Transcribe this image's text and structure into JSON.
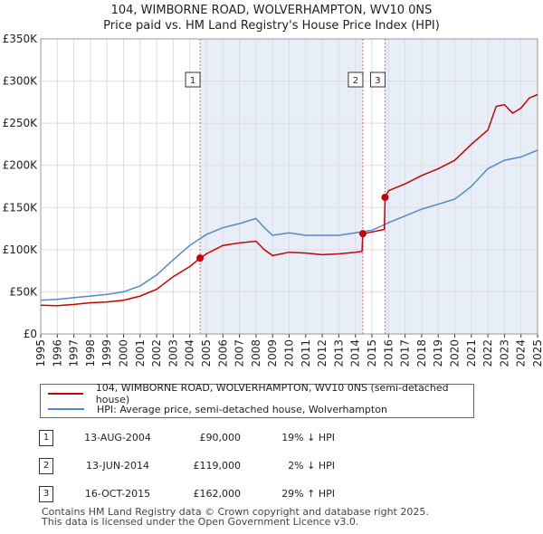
{
  "page": {
    "title_line1": "104, WIMBORNE ROAD, WOLVERHAMPTON, WV10 0NS",
    "title_line2": "Price paid vs. HM Land Registry's House Price Index (HPI)"
  },
  "legend": {
    "property_label": "104, WIMBORNE ROAD, WOLVERHAMPTON, WV10 0NS (semi-detached house)",
    "hpi_label": "HPI: Average price, semi-detached house, Wolverhampton"
  },
  "sales": [
    {
      "num": "1",
      "date": "13-AUG-2004",
      "price": "£90,000",
      "hpi_change": "19% ↓ HPI"
    },
    {
      "num": "2",
      "date": "13-JUN-2014",
      "price": "£119,000",
      "hpi_change": "2% ↓ HPI"
    },
    {
      "num": "3",
      "date": "16-OCT-2015",
      "price": "£162,000",
      "hpi_change": "29% ↑ HPI"
    }
  ],
  "footer": {
    "line1": "Contains HM Land Registry data © Crown copyright and database right 2025.",
    "line2": "This data is licensed under the Open Government Licence v3.0."
  },
  "chart_data": {
    "type": "line",
    "title": "104, WIMBORNE ROAD, WOLVERHAMPTON, WV10 0NS — Price paid vs. HM Land Registry's House Price Index (HPI)",
    "xlabel": "",
    "ylabel": "",
    "xlim": [
      1995,
      2025
    ],
    "ylim": [
      0,
      350000
    ],
    "x_ticks": [
      1995,
      1996,
      1997,
      1998,
      1999,
      2000,
      2001,
      2002,
      2003,
      2004,
      2005,
      2006,
      2007,
      2008,
      2009,
      2010,
      2011,
      2012,
      2013,
      2014,
      2015,
      2016,
      2017,
      2018,
      2019,
      2020,
      2021,
      2022,
      2023,
      2024,
      2025
    ],
    "y_ticks": [
      {
        "value": 0,
        "label": "£0"
      },
      {
        "value": 50000,
        "label": "£50K"
      },
      {
        "value": 100000,
        "label": "£100K"
      },
      {
        "value": 150000,
        "label": "£150K"
      },
      {
        "value": 200000,
        "label": "£200K"
      },
      {
        "value": 250000,
        "label": "£250K"
      },
      {
        "value": 300000,
        "label": "£300K"
      },
      {
        "value": 350000,
        "label": "£350K"
      }
    ],
    "grid": true,
    "colors": {
      "property": "#cc0000",
      "hpi": "#5588cc",
      "shade": "#e8eef8",
      "grid": "#dddddd",
      "marker_line": "#dd6666"
    },
    "sale_markers": [
      {
        "label": "1",
        "x": 2004.62,
        "y": 90000
      },
      {
        "label": "2",
        "x": 2014.45,
        "y": 119000
      },
      {
        "label": "3",
        "x": 2015.79,
        "y": 162000
      }
    ],
    "series": [
      {
        "name": "104, WIMBORNE ROAD, WOLVERHAMPTON, WV10 0NS (semi-detached house)",
        "x": [
          1995,
          1996,
          1997,
          1998,
          1999,
          2000,
          2001,
          2002,
          2003,
          2004,
          2004.62,
          2005,
          2006,
          2007,
          2008,
          2008.5,
          2009,
          2010,
          2011,
          2012,
          2013,
          2014,
          2014.4,
          2014.45,
          2015,
          2015.75,
          2015.79,
          2016,
          2017,
          2018,
          2019,
          2020,
          2021,
          2022,
          2022.5,
          2023,
          2023.5,
          2024,
          2024.5,
          2025
        ],
        "values": [
          34000,
          33500,
          35000,
          37000,
          38000,
          40000,
          45000,
          53000,
          68000,
          80000,
          90000,
          95000,
          105000,
          108000,
          110000,
          100000,
          93000,
          97000,
          96000,
          94000,
          95000,
          97000,
          98000,
          119000,
          121000,
          124000,
          162000,
          170000,
          178000,
          188000,
          196000,
          206000,
          225000,
          242000,
          270000,
          272000,
          262000,
          268000,
          280000,
          284000
        ]
      },
      {
        "name": "HPI: Average price, semi-detached house, Wolverhampton",
        "x": [
          1995,
          1996,
          1997,
          1998,
          1999,
          2000,
          2001,
          2002,
          2003,
          2004,
          2005,
          2006,
          2007,
          2008,
          2008.5,
          2009,
          2010,
          2011,
          2012,
          2013,
          2014,
          2015,
          2016,
          2017,
          2018,
          2019,
          2020,
          2021,
          2022,
          2023,
          2024,
          2025
        ],
        "values": [
          40000,
          41000,
          43000,
          45000,
          47000,
          50000,
          57000,
          70000,
          88000,
          105000,
          118000,
          126000,
          131000,
          137000,
          126000,
          117000,
          120000,
          117000,
          117000,
          117000,
          120000,
          123000,
          132000,
          140000,
          148000,
          154000,
          160000,
          175000,
          196000,
          206000,
          210000,
          218000
        ]
      }
    ]
  }
}
